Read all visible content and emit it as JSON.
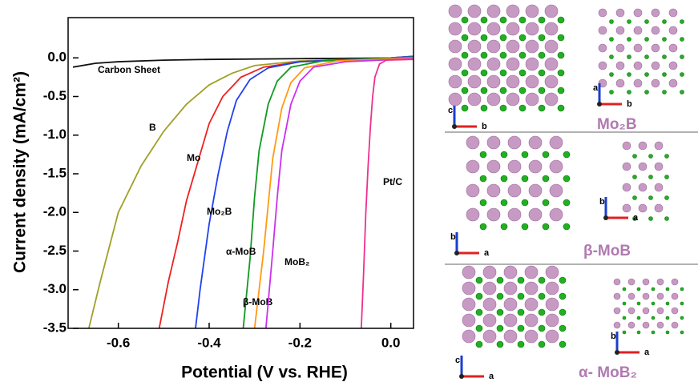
{
  "chart_data": {
    "type": "line",
    "xlabel": "Potential (V vs. RHE)",
    "ylabel": "Current density (mA/cm²)",
    "xlim": [
      -0.7,
      0.05
    ],
    "ylim": [
      -3.5,
      0.5
    ],
    "xticks": [
      -0.6,
      -0.4,
      -0.2,
      {
        "value": 0,
        "label": "0.0"
      }
    ],
    "yticks": [
      {
        "value": 0,
        "label": "0.0"
      },
      -0.5,
      {
        "value": -1,
        "label": "-1.0"
      },
      -1.5,
      {
        "value": -2,
        "label": "-2.0"
      },
      -2.5,
      {
        "value": -3,
        "label": "-3.0"
      },
      -3.5
    ],
    "series": [
      {
        "name": "Carbon Sheet",
        "color": "#111111",
        "x": [
          -0.7,
          -0.65,
          -0.6,
          -0.5,
          -0.4,
          -0.2,
          0.05
        ],
        "values": [
          -0.12,
          -0.07,
          -0.05,
          -0.03,
          -0.02,
          -0.01,
          0.0
        ]
      },
      {
        "name": "B",
        "color": "#a0a028",
        "x": [
          -0.665,
          -0.64,
          -0.6,
          -0.55,
          -0.5,
          -0.45,
          -0.4,
          -0.35,
          -0.3,
          -0.2,
          0,
          0.05
        ],
        "values": [
          -3.5,
          -2.9,
          -2.0,
          -1.4,
          -0.95,
          -0.6,
          -0.35,
          -0.2,
          -0.1,
          -0.04,
          0,
          0.02
        ]
      },
      {
        "name": "Mo",
        "color": "#ee2020",
        "x": [
          -0.51,
          -0.49,
          -0.47,
          -0.45,
          -0.42,
          -0.4,
          -0.37,
          -0.33,
          -0.28,
          -0.2,
          0,
          0.05
        ],
        "values": [
          -3.5,
          -2.9,
          -2.4,
          -1.85,
          -1.25,
          -0.85,
          -0.5,
          -0.25,
          -0.12,
          -0.05,
          0,
          0.02
        ]
      },
      {
        "name": "Mo₂B",
        "color": "#2040ee",
        "x": [
          -0.43,
          -0.42,
          -0.4,
          -0.38,
          -0.36,
          -0.34,
          -0.31,
          -0.27,
          -0.2,
          0,
          0.05
        ],
        "values": [
          -3.5,
          -3.0,
          -2.15,
          -1.5,
          -0.95,
          -0.55,
          -0.28,
          -0.13,
          -0.05,
          0,
          0.02
        ]
      },
      {
        "name": "α-MoB",
        "color": "#109a20",
        "x": [
          -0.325,
          -0.31,
          -0.3,
          -0.29,
          -0.27,
          -0.25,
          -0.22,
          -0.15,
          0.05
        ],
        "values": [
          -3.5,
          -2.6,
          -1.8,
          -1.2,
          -0.6,
          -0.3,
          -0.12,
          -0.04,
          0.01
        ]
      },
      {
        "name": "β-MoB",
        "color": "#ff9a10",
        "x": [
          -0.3,
          -0.28,
          -0.27,
          -0.26,
          -0.24,
          -0.22,
          -0.19,
          -0.12,
          0.05
        ],
        "values": [
          -3.5,
          -2.5,
          -1.9,
          -1.3,
          -0.65,
          -0.32,
          -0.13,
          -0.04,
          0.0
        ]
      },
      {
        "name": "MoB₂",
        "color": "#cc30ee",
        "x": [
          -0.275,
          -0.26,
          -0.25,
          -0.24,
          -0.22,
          -0.2,
          -0.17,
          -0.1,
          0.05
        ],
        "values": [
          -3.5,
          -2.5,
          -1.8,
          -1.2,
          -0.6,
          -0.3,
          -0.12,
          -0.05,
          -0.01
        ]
      },
      {
        "name": "Pt/C",
        "color": "#ee3090",
        "x": [
          -0.065,
          -0.06,
          -0.055,
          -0.05,
          -0.045,
          -0.04,
          -0.035,
          -0.025,
          -0.01,
          0.05
        ],
        "values": [
          -3.5,
          -2.8,
          -2.0,
          -1.4,
          -0.9,
          -0.5,
          -0.25,
          -0.08,
          -0.03,
          -0.02
        ]
      }
    ]
  },
  "structures": [
    {
      "title": "Mo₂B",
      "axes": [
        [
          "c",
          "b"
        ],
        [
          "a",
          "b"
        ]
      ]
    },
    {
      "title": "β-MoB",
      "axes": [
        [
          "b",
          "a"
        ],
        [
          "b",
          "a"
        ]
      ]
    },
    {
      "title": "α- MoB₂",
      "axes": [
        [
          "c",
          "a"
        ],
        [
          "b",
          "a"
        ]
      ]
    }
  ]
}
